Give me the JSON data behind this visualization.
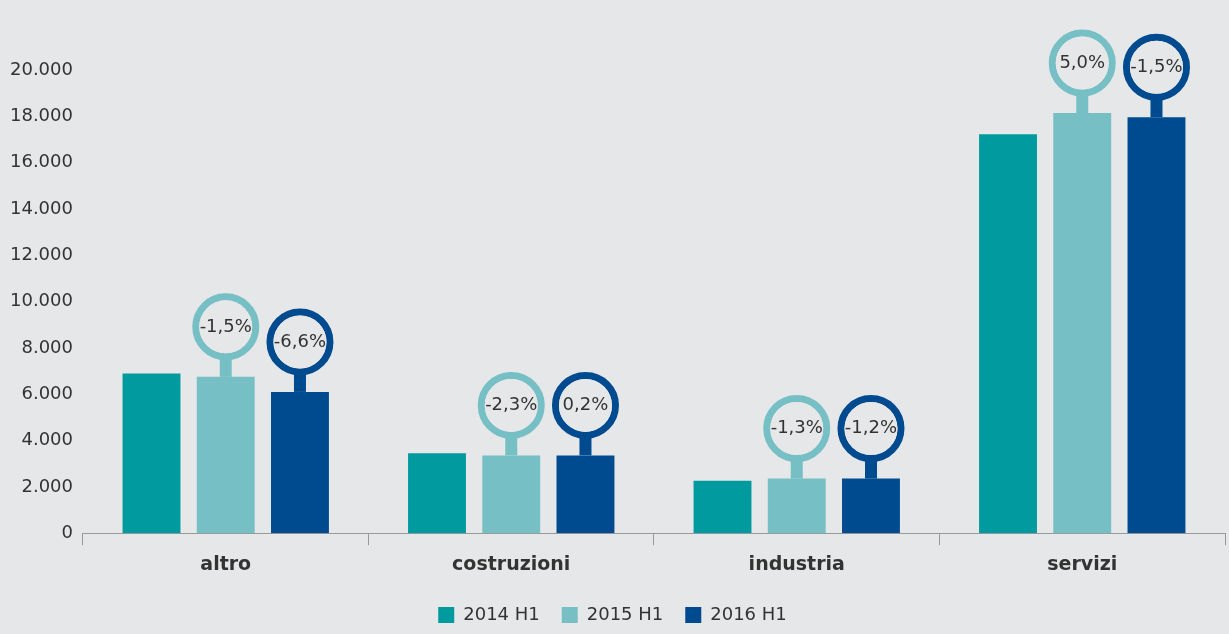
{
  "chart_data": {
    "type": "bar",
    "categories": [
      "altro",
      "costruzioni",
      "industria",
      "servizi"
    ],
    "series": [
      {
        "name": "2014 H1",
        "color": "#009a9f",
        "values": [
          6900,
          3450,
          2270,
          17230
        ]
      },
      {
        "name": "2015 H1",
        "color": "#76c0c5",
        "values": [
          6750,
          3360,
          2360,
          18140
        ]
      },
      {
        "name": "2016 H1",
        "color": "#004a8f",
        "values": [
          6100,
          3360,
          2360,
          17960
        ]
      }
    ],
    "annotations": [
      "-1,5%",
      "-6,6%",
      "-2,3%",
      "0,2%",
      "-1,3%",
      "-1,2%",
      "5,0%",
      "-1,5%"
    ],
    "ylim": [
      0,
      20000
    ],
    "yticks": [
      {
        "value": 0,
        "label": "0"
      },
      {
        "value": 2000,
        "label": "2.000"
      },
      {
        "value": 4000,
        "label": "4.000"
      },
      {
        "value": 6000,
        "label": "6.000"
      },
      {
        "value": 8000,
        "label": "8.000"
      },
      {
        "value": 10000,
        "label": "10.000"
      },
      {
        "value": 12000,
        "label": "12.000"
      },
      {
        "value": 14000,
        "label": "14.000"
      },
      {
        "value": 16000,
        "label": "16.000"
      },
      {
        "value": 18000,
        "label": "18.000"
      },
      {
        "value": 20000,
        "label": "20.000"
      }
    ],
    "legend": "bottom"
  }
}
